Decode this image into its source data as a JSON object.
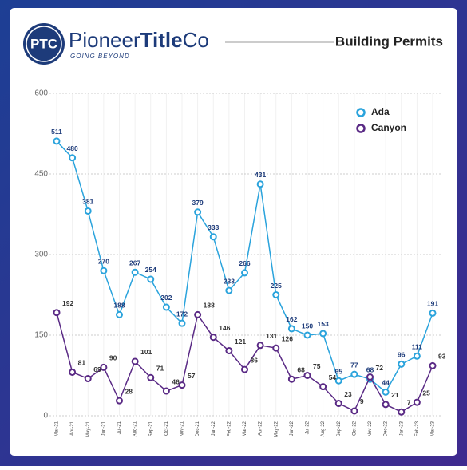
{
  "header": {
    "logo": "PTC",
    "brand_regular": "Pioneer",
    "brand_bold": "Title",
    "brand_end": "Co",
    "tagline": "GOING BEYOND"
  },
  "chart_data": {
    "type": "line",
    "title": "Building Permits",
    "categories": [
      "Mar-21",
      "Apr-21",
      "May-21",
      "Jun-21",
      "Jul-21",
      "Aug-21",
      "Sep-21",
      "Oct-21",
      "Nov-21",
      "Dec-21",
      "Jan-22",
      "Feb-22",
      "Mar-22",
      "Apr-22",
      "May-22",
      "Jun-22",
      "Jul-22",
      "Aug-22",
      "Sep-22",
      "Oct-22",
      "Nov-22",
      "Dec-22",
      "Jan-23",
      "Feb-23",
      "Mar-23"
    ],
    "series": [
      {
        "name": "Ada",
        "color": "#2aa3dc",
        "values": [
          511,
          480,
          381,
          270,
          188,
          267,
          254,
          202,
          172,
          379,
          333,
          233,
          266,
          431,
          225,
          162,
          150,
          153,
          65,
          77,
          68,
          44,
          96,
          111,
          191
        ]
      },
      {
        "name": "Canyon",
        "color": "#5a2a85",
        "values": [
          192,
          81,
          69,
          90,
          28,
          101,
          71,
          46,
          57,
          188,
          146,
          121,
          86,
          131,
          126,
          68,
          75,
          54,
          23,
          9,
          72,
          21,
          7,
          25,
          93
        ]
      }
    ],
    "ylim": [
      0,
      600
    ],
    "yticks": [
      0,
      150,
      300,
      450,
      600
    ],
    "grid": true,
    "legend": "top-right"
  }
}
